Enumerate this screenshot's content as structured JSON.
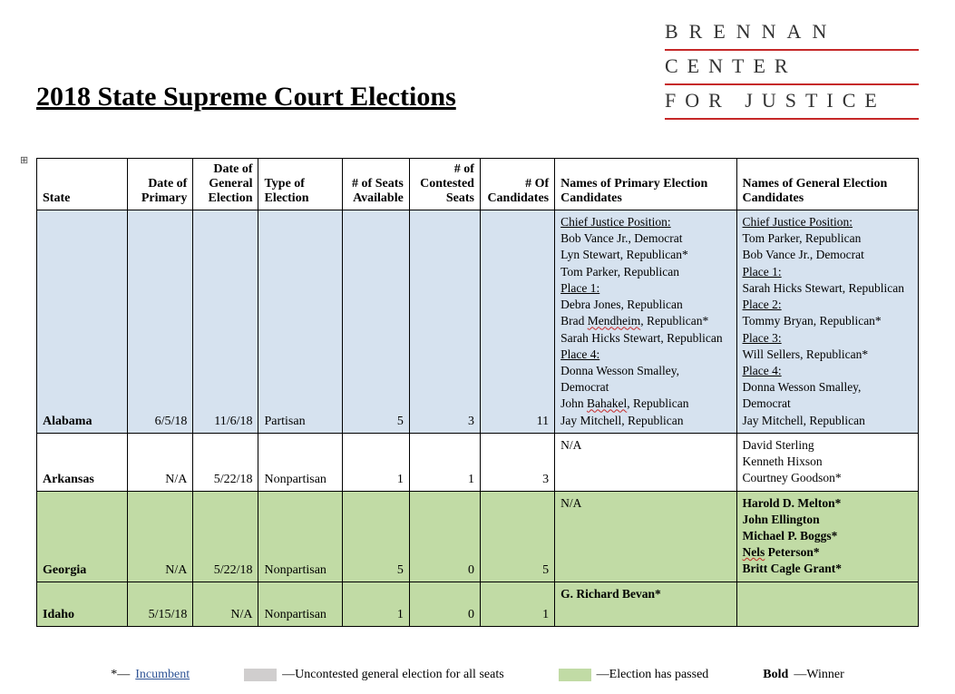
{
  "logo": {
    "l1": "BRENNAN",
    "l2": "CENTER",
    "l3": "FOR JUSTICE"
  },
  "title": "2018 State Supreme Court Elections",
  "columns": [
    "State",
    "Date of Primary",
    "Date of General Election",
    "Type of Election",
    "# of Seats Available",
    "# of Contested Seats",
    "# Of Candidates",
    "Names of Primary Election Candidates",
    "Names of General Election Candidates"
  ],
  "rows": [
    {
      "row_class": "row-blue",
      "state": "Alabama",
      "primary": "6/5/18",
      "general": "11/6/18",
      "type": "Partisan",
      "seats": "5",
      "contested": "3",
      "n_cand": "11",
      "primary_candidates": [
        {
          "t": "Chief Justice Position:",
          "cls": "pos"
        },
        {
          "t": "Bob Vance Jr., Democrat"
        },
        {
          "t": "Lyn Stewart, Republican*"
        },
        {
          "t": "Tom Parker, Republican"
        },
        {
          "t": "Place 1:",
          "cls": "pos"
        },
        {
          "t": "Debra Jones, Republican"
        },
        {
          "t": "Brad <span class='squig'>Mendheim</span>, Republican*",
          "html": true
        },
        {
          "t": "Sarah Hicks Stewart, Republican"
        },
        {
          "t": "Place 4:",
          "cls": "pos"
        },
        {
          "t": "Donna Wesson Smalley, Democrat"
        },
        {
          "t": "John <span class='squig'>Bahakel</span>, Republican",
          "html": true
        },
        {
          "t": "Jay Mitchell, Republican"
        }
      ],
      "general_candidates": [
        {
          "t": "Chief Justice Position:",
          "cls": "pos"
        },
        {
          "t": "Tom Parker, Republican"
        },
        {
          "t": "Bob Vance Jr., Democrat"
        },
        {
          "t": "Place 1:",
          "cls": "pos"
        },
        {
          "t": "Sarah Hicks Stewart, Republican"
        },
        {
          "t": "Place 2:",
          "cls": "pos"
        },
        {
          "t": "Tommy Bryan, Republican*"
        },
        {
          "t": "Place 3:",
          "cls": "pos"
        },
        {
          "t": "Will Sellers, Republican*"
        },
        {
          "t": "Place 4:",
          "cls": "pos"
        },
        {
          "t": "Donna Wesson Smalley, Democrat"
        },
        {
          "t": "Jay Mitchell, Republican"
        }
      ]
    },
    {
      "row_class": "",
      "state": "Arkansas",
      "primary": "N/A",
      "general": "5/22/18",
      "type": "Nonpartisan",
      "seats": "1",
      "contested": "1",
      "n_cand": "3",
      "primary_candidates": [
        {
          "t": "N/A"
        }
      ],
      "general_candidates": [
        {
          "t": "David Sterling"
        },
        {
          "t": "Kenneth Hixson"
        },
        {
          "t": "Courtney Goodson*"
        }
      ]
    },
    {
      "row_class": "row-green",
      "state": "Georgia",
      "primary": "N/A",
      "general": "5/22/18",
      "type": "Nonpartisan",
      "seats": "5",
      "contested": "0",
      "n_cand": "5",
      "primary_candidates": [
        {
          "t": "N/A"
        }
      ],
      "general_candidates": [
        {
          "t": "Harold D. Melton*",
          "cls": "win"
        },
        {
          "t": "John Ellington",
          "cls": "win"
        },
        {
          "t": "Michael P. Boggs*",
          "cls": "win"
        },
        {
          "t": "<span class='squig'>Nels</span> Peterson*",
          "cls": "win",
          "html": true
        },
        {
          "t": "Britt Cagle Grant*",
          "cls": "win"
        }
      ]
    },
    {
      "row_class": "row-green",
      "state": "Idaho",
      "primary": "5/15/18",
      "general": "N/A",
      "type": "Nonpartisan",
      "seats": "1",
      "contested": "0",
      "n_cand": "1",
      "primary_candidates": [
        {
          "t": "G. Richard Bevan*",
          "cls": "win"
        }
      ],
      "general_candidates": [
        {
          "t": " "
        }
      ],
      "pad_bottom": true
    }
  ],
  "legend": {
    "incumbent_key": "*—",
    "incumbent_text": "Incumbent",
    "gray_label": "Gray",
    "gray_desc": "—Uncontested general election for all seats",
    "green_label": "Green",
    "green_desc": "—Election has passed",
    "bold_label": "Bold",
    "bold_desc": "—Winner"
  },
  "colors": {
    "blue_row": "#d6e2ef",
    "green_row": "#c1dba5",
    "accent_red": "#c62828",
    "link_blue": "#2f5496",
    "gray_swatch": "#d0cece"
  }
}
